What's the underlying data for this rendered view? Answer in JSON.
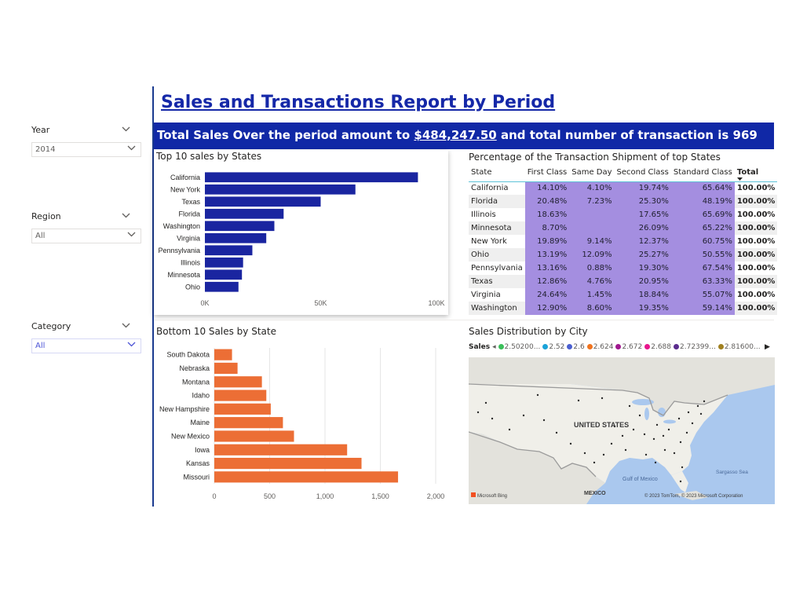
{
  "slicers": {
    "year": {
      "label": "Year",
      "value": "2014"
    },
    "region": {
      "label": "Region",
      "value": "All"
    },
    "category": {
      "label": "Category",
      "value": "All"
    }
  },
  "report": {
    "title": "Sales and Transactions Report by Period",
    "summary_prefix": "Total Sales Over the period amount to ",
    "summary_amount": "$484,247.50",
    "summary_suffix": " and total number of transaction is 969"
  },
  "matrix": {
    "title": "Percentage of the Transaction Shipment of top States",
    "columns": [
      "State",
      "First Class",
      "Same Day",
      "Second Class",
      "Standard Class",
      "Total"
    ],
    "rows": [
      [
        "California",
        "14.10%",
        "4.10%",
        "19.74%",
        "65.64%",
        "100.00%"
      ],
      [
        "Florida",
        "20.48%",
        "7.23%",
        "25.30%",
        "48.19%",
        "100.00%"
      ],
      [
        "Illinois",
        "18.63%",
        "",
        "17.65%",
        "65.69%",
        "100.00%"
      ],
      [
        "Minnesota",
        "8.70%",
        "",
        "26.09%",
        "65.22%",
        "100.00%"
      ],
      [
        "New York",
        "19.89%",
        "9.14%",
        "12.37%",
        "60.75%",
        "100.00%"
      ],
      [
        "Ohio",
        "13.19%",
        "12.09%",
        "25.27%",
        "50.55%",
        "100.00%"
      ],
      [
        "Pennsylvania",
        "13.16%",
        "0.88%",
        "19.30%",
        "67.54%",
        "100.00%"
      ],
      [
        "Texas",
        "12.86%",
        "4.76%",
        "20.95%",
        "63.33%",
        "100.00%"
      ],
      [
        "Virginia",
        "24.64%",
        "1.45%",
        "18.84%",
        "55.07%",
        "100.00%"
      ],
      [
        "Washington",
        "12.90%",
        "8.60%",
        "19.35%",
        "59.14%",
        "100.00%"
      ]
    ]
  },
  "map": {
    "title": "Sales Distribution by City",
    "legend_title": "Sales",
    "legend_items": [
      {
        "label": "2.50200...",
        "color": "#3bbf5a"
      },
      {
        "label": "2.52",
        "color": "#1aa3d9"
      },
      {
        "label": "2.6",
        "color": "#4a5fd0"
      },
      {
        "label": "2.624",
        "color": "#f0731e"
      },
      {
        "label": "2.672",
        "color": "#a0188f"
      },
      {
        "label": "2.688",
        "color": "#e8168c"
      },
      {
        "label": "2.72399...",
        "color": "#5b2d8e"
      },
      {
        "label": "2.81600...",
        "color": "#a08020"
      }
    ],
    "labels": {
      "country": "UNITED STATES",
      "gulf": "Gulf of Mexico",
      "mexico": "MEXICO",
      "sargasso": "Sargasso Sea",
      "bing": "Microsoft Bing",
      "copyright": "© 2023 TomTom, © 2023 Microsoft Corporation"
    }
  },
  "chart_data": [
    {
      "type": "bar",
      "title": "Top 10 sales by States",
      "categories": [
        "California",
        "New York",
        "Texas",
        "Florida",
        "Washington",
        "Virginia",
        "Pennsylvania",
        "Illinois",
        "Minnesota",
        "Ohio"
      ],
      "values": [
        92000,
        65000,
        50000,
        34000,
        30000,
        26500,
        20500,
        16500,
        16000,
        14500
      ],
      "xlim": [
        0,
        100000
      ],
      "xticks": [
        "0K",
        "50K",
        "100K"
      ],
      "color": "#1a25a0",
      "grid": false
    },
    {
      "type": "bar",
      "title": "Bottom 10 Sales by State",
      "categories": [
        "South Dakota",
        "Nebraska",
        "Montana",
        "Idaho",
        "New Hampshire",
        "Maine",
        "New Mexico",
        "Iowa",
        "Kansas",
        "Missouri"
      ],
      "values": [
        160,
        210,
        430,
        470,
        510,
        620,
        720,
        1200,
        1330,
        1660
      ],
      "xlim": [
        0,
        2000
      ],
      "xticks": [
        "0",
        "500",
        "1,000",
        "1,500",
        "2,000"
      ],
      "color": "#ec6e35",
      "grid": true
    }
  ]
}
